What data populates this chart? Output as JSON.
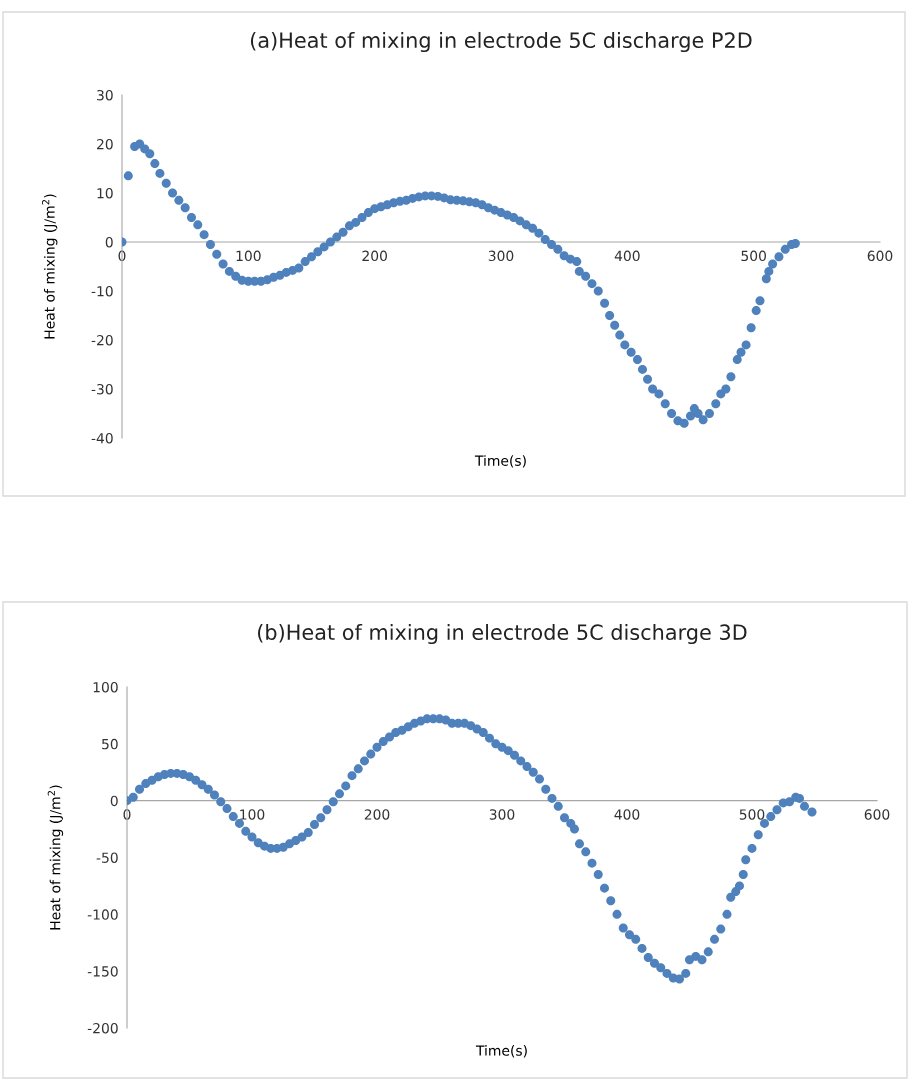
{
  "chart_data": [
    {
      "type": "scatter",
      "title": "(a)Heat of mixing in electrode 5C discharge P2D",
      "xlabel": "Time(s)",
      "ylabel": "Heat of mixing (J/m$^{2}$)",
      "marker": "circle",
      "grid": false,
      "xlim": [
        0,
        600
      ],
      "ylim": [
        -40,
        30
      ],
      "xticks": [
        0,
        100,
        200,
        300,
        400,
        500,
        600
      ],
      "yticks": [
        -40,
        -30,
        -20,
        -10,
        0,
        10,
        20,
        30
      ],
      "series": [
        {
          "color": "#4f81bd",
          "x": [
            0,
            5,
            10,
            14,
            18,
            22,
            26,
            30,
            35,
            40,
            45,
            50,
            55,
            60,
            65,
            70,
            75,
            80,
            85,
            90,
            95,
            100,
            105,
            110,
            115,
            120,
            125,
            130,
            135,
            140,
            145,
            150,
            155,
            160,
            165,
            170,
            175,
            180,
            185,
            190,
            195,
            200,
            205,
            210,
            215,
            220,
            225,
            230,
            235,
            240,
            245,
            250,
            255,
            260,
            265,
            270,
            275,
            280,
            285,
            290,
            295,
            300,
            305,
            310,
            315,
            320,
            325,
            330,
            335,
            340,
            345,
            350,
            355,
            360,
            362,
            367,
            372,
            377,
            382,
            386,
            390,
            394,
            398,
            403,
            408,
            412,
            416,
            420,
            425,
            430,
            435,
            440,
            445,
            450,
            453,
            456,
            460,
            465,
            470,
            474,
            478,
            482,
            487,
            490,
            494,
            498,
            502,
            505,
            510,
            512,
            515,
            520,
            525,
            530,
            533
          ],
          "values": [
            0,
            13.5,
            19.5,
            20,
            19,
            18,
            16,
            14,
            12,
            10,
            8.5,
            7,
            5,
            3.5,
            1.5,
            -0.5,
            -2.5,
            -4.5,
            -6,
            -7,
            -7.8,
            -8,
            -8,
            -8,
            -7.7,
            -7.2,
            -6.8,
            -6.2,
            -5.8,
            -5.3,
            -4,
            -3,
            -2,
            -1,
            0,
            1,
            2,
            3.3,
            4,
            5,
            6,
            6.8,
            7.2,
            7.6,
            8,
            8.3,
            8.5,
            8.9,
            9.2,
            9.4,
            9.4,
            9.3,
            9,
            8.6,
            8.5,
            8.4,
            8.2,
            8,
            7.6,
            7,
            6.5,
            6,
            5.5,
            5,
            4.3,
            3.5,
            2.8,
            1.8,
            0.5,
            -0.5,
            -1.5,
            -2.8,
            -3.5,
            -4,
            -6,
            -7,
            -8.5,
            -10,
            -12.5,
            -15,
            -17,
            -19,
            -21,
            -22.5,
            -24,
            -26,
            -28,
            -30,
            -31,
            -33,
            -35,
            -36.5,
            -37,
            -35.5,
            -34,
            -35,
            -36.3,
            -35,
            -33,
            -31,
            -30,
            -27.5,
            -24,
            -22.5,
            -21,
            -17.5,
            -14,
            -12,
            -7.5,
            -6,
            -4.5,
            -3,
            -1.5,
            -0.5,
            -0.3
          ]
        }
      ]
    },
    {
      "type": "scatter",
      "title": "(b)Heat of mixing in electrode 5C discharge 3D",
      "xlabel": "Time(s)",
      "ylabel": "Heat of mixing (J/m$^{2}$)",
      "marker": "circle",
      "grid": false,
      "xlim": [
        0,
        600
      ],
      "ylim": [
        -200,
        100
      ],
      "xticks": [
        0,
        100,
        200,
        300,
        400,
        500,
        600
      ],
      "yticks": [
        -200,
        -150,
        -100,
        -50,
        0,
        50,
        100
      ],
      "series": [
        {
          "color": "#4f81bd",
          "x": [
            0,
            5,
            10,
            15,
            20,
            25,
            30,
            35,
            40,
            45,
            50,
            55,
            60,
            65,
            70,
            75,
            80,
            85,
            90,
            95,
            100,
            105,
            110,
            115,
            120,
            125,
            130,
            135,
            140,
            145,
            150,
            155,
            160,
            165,
            170,
            175,
            180,
            185,
            190,
            195,
            200,
            205,
            210,
            215,
            220,
            225,
            230,
            235,
            240,
            245,
            250,
            255,
            260,
            265,
            270,
            275,
            280,
            285,
            290,
            295,
            300,
            305,
            310,
            315,
            320,
            325,
            330,
            335,
            340,
            345,
            350,
            355,
            358,
            362,
            367,
            372,
            377,
            382,
            387,
            392,
            397,
            402,
            407,
            412,
            417,
            422,
            427,
            432,
            437,
            442,
            447,
            450,
            455,
            460,
            465,
            470,
            475,
            480,
            483,
            487,
            490,
            493,
            495,
            500,
            505,
            510,
            515,
            520,
            525,
            530,
            535,
            538,
            542,
            548
          ],
          "values": [
            0,
            3,
            10,
            15,
            18,
            21,
            23,
            24,
            24,
            23,
            21,
            18,
            14,
            10,
            5,
            -1,
            -7,
            -14,
            -20,
            -27,
            -32,
            -37,
            -40,
            -42,
            -42,
            -41,
            -38,
            -35,
            -32,
            -28,
            -21,
            -15,
            -8,
            -1,
            6,
            13,
            22,
            28,
            35,
            41,
            47,
            52,
            56,
            60,
            62,
            65,
            68,
            70,
            72,
            72,
            72,
            71,
            68,
            68,
            68,
            66,
            63,
            60,
            55,
            50,
            47,
            44,
            40,
            35,
            30,
            25,
            19,
            10,
            2,
            -5,
            -15,
            -20,
            -25,
            -38,
            -45,
            -55,
            -65,
            -77,
            -88,
            -100,
            -112,
            -118,
            -122,
            -130,
            -138,
            -143,
            -147,
            -152,
            -156,
            -157,
            -152,
            -140,
            -137,
            -140,
            -133,
            -122,
            -113,
            -100,
            -85,
            -80,
            -75,
            -65,
            -52,
            -42,
            -30,
            -20,
            -14,
            -8,
            -2,
            -1,
            3,
            2,
            -5,
            -10
          ]
        }
      ]
    }
  ]
}
